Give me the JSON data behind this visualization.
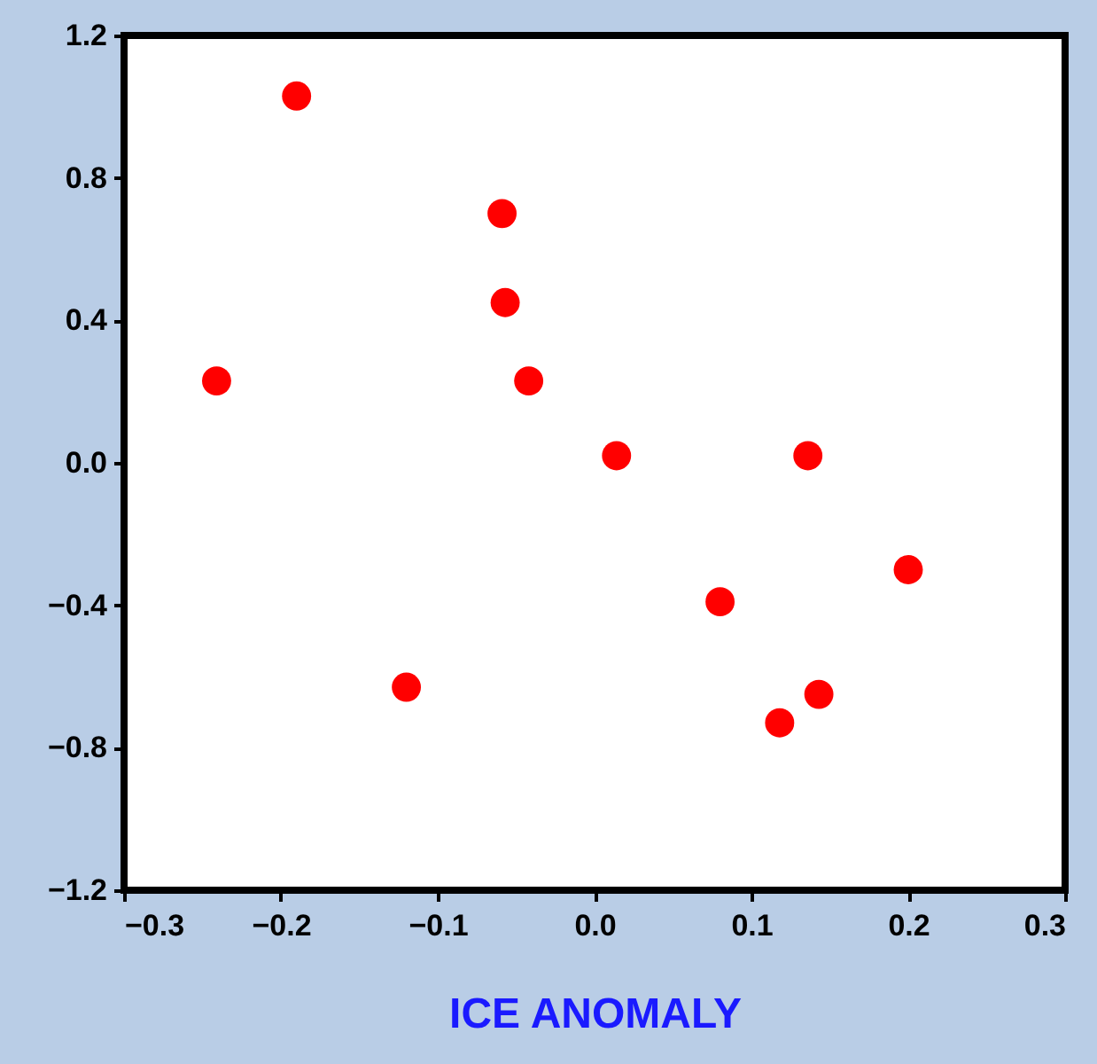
{
  "chart_data": {
    "type": "scatter",
    "xlabel": "ICE ANOMALY",
    "x": [
      -0.19,
      -0.241,
      -0.059,
      -0.057,
      -0.042,
      0.014,
      0.136,
      0.2,
      0.08,
      -0.12,
      0.118,
      0.143
    ],
    "values": [
      1.03,
      0.23,
      0.7,
      0.45,
      0.23,
      0.02,
      0.02,
      -0.3,
      -0.39,
      -0.63,
      -0.73,
      -0.65
    ],
    "color": "#ff0000",
    "marker": "circle",
    "xlim": [
      -0.3,
      0.3
    ],
    "xticks": [
      -0.3,
      -0.2,
      -0.1,
      {
        "value": 0,
        "label": "0.0"
      },
      0.1,
      0.2,
      0.3
    ],
    "ylim": [
      -1.2,
      1.2
    ],
    "yticks": [
      -1.2,
      -0.8,
      -0.4,
      {
        "value": 0,
        "label": "0.0"
      },
      0.4,
      0.8,
      1.2
    ]
  }
}
